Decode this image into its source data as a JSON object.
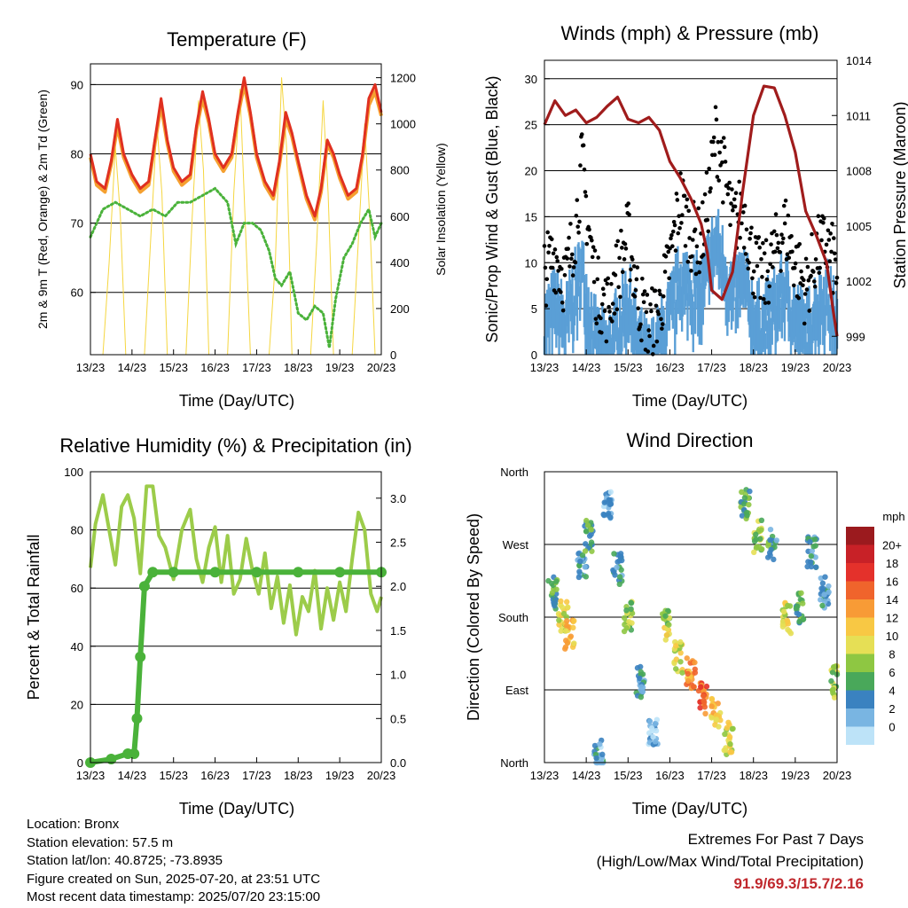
{
  "info": {
    "location": "Location: Bronx",
    "elevation": "Station elevation: 57.5 m",
    "latlon": "Station lat/lon: 40.8725; -73.8935",
    "created": "Figure created on Sun, 2025-07-20, at 23:51 UTC",
    "latest": "Most recent data timestamp: 2025/07/20 23:15:00"
  },
  "extremes": {
    "title": "Extremes For Past 7 Days",
    "subtitle": "(High/Low/Max Wind/Total Precipitation)",
    "values": "91.9/69.3/15.7/2.16",
    "color": "#c0282d"
  },
  "colorbar": {
    "unit": "mph",
    "labels": [
      "20+",
      "18",
      "16",
      "14",
      "12",
      "10",
      "8",
      "6",
      "4",
      "2",
      "0"
    ],
    "colors": [
      "#9b1a1e",
      "#c82127",
      "#e4312b",
      "#f0642c",
      "#f89b36",
      "#f8c844",
      "#e6df55",
      "#8ec742",
      "#49a85a",
      "#3a82c0",
      "#79b5e2",
      "#bde3f8"
    ]
  },
  "chart_data": [
    {
      "type": "line",
      "title": "Temperature (F)",
      "xlabel": "Time (Day/UTC)",
      "ylabel": "2m & 9m T (Red, Orange) & 2m Td (Green)",
      "y2label": "Solar Insolation (Yellow)",
      "x_ticks": [
        "13/23",
        "14/23",
        "15/23",
        "16/23",
        "17/23",
        "18/23",
        "19/23",
        "20/23"
      ],
      "ylim": [
        51,
        93
      ],
      "y_ticks": [
        60,
        70,
        80,
        90
      ],
      "y2lim": [
        0,
        1260
      ],
      "y2_ticks": [
        0,
        200,
        400,
        600,
        800,
        1000,
        1200
      ],
      "grid": true,
      "series": [
        {
          "name": "2m T",
          "axis": "left",
          "color": "#e03020",
          "x": [
            0,
            0.15,
            0.35,
            0.5,
            0.65,
            0.8,
            1,
            1.2,
            1.4,
            1.55,
            1.7,
            1.85,
            2,
            2.2,
            2.4,
            2.55,
            2.7,
            2.85,
            3,
            3.2,
            3.4,
            3.55,
            3.7,
            3.85,
            4,
            4.2,
            4.4,
            4.55,
            4.7,
            4.85,
            5,
            5.2,
            5.4,
            5.55,
            5.7,
            5.85,
            6,
            6.2,
            6.4,
            6.55,
            6.7,
            6.85,
            7
          ],
          "y": [
            80,
            76,
            75,
            79,
            85,
            80,
            77,
            75,
            76,
            82,
            88,
            82,
            78,
            76,
            77,
            84,
            89,
            85,
            80,
            78,
            80,
            86,
            91,
            86,
            80,
            76,
            74,
            79,
            86,
            83,
            79,
            74,
            71,
            75,
            82,
            80,
            77,
            74,
            75,
            80,
            88,
            90,
            86
          ]
        },
        {
          "name": "9m T",
          "axis": "left",
          "color": "#f5a030",
          "x": [
            0,
            0.15,
            0.35,
            0.5,
            0.65,
            0.8,
            1,
            1.2,
            1.4,
            1.55,
            1.7,
            1.85,
            2,
            2.2,
            2.4,
            2.55,
            2.7,
            2.85,
            3,
            3.2,
            3.4,
            3.55,
            3.7,
            3.85,
            4,
            4.2,
            4.4,
            4.55,
            4.7,
            4.85,
            5,
            5.2,
            5.4,
            5.55,
            5.7,
            5.85,
            6,
            6.2,
            6.4,
            6.55,
            6.7,
            6.85,
            7
          ],
          "y": [
            79.5,
            75.5,
            74.5,
            78.5,
            84,
            79.5,
            76.5,
            74.5,
            75.5,
            81.5,
            87,
            81.5,
            77.5,
            75.5,
            76.5,
            83.5,
            88,
            84.5,
            79.5,
            77.5,
            79.5,
            85.5,
            90,
            85.5,
            79.5,
            75.5,
            73.5,
            78.5,
            85,
            82.5,
            78.5,
            73.5,
            70.5,
            74.5,
            81.5,
            79.5,
            76.5,
            73.5,
            74.5,
            79.5,
            87,
            89,
            85.5
          ]
        },
        {
          "name": "2m Td",
          "axis": "left",
          "color": "#4ab23a",
          "x": [
            0,
            0.3,
            0.6,
            0.9,
            1.2,
            1.5,
            1.8,
            2.1,
            2.4,
            2.7,
            3,
            3.3,
            3.5,
            3.7,
            3.9,
            4.1,
            4.3,
            4.45,
            4.6,
            4.8,
            5,
            5.2,
            5.4,
            5.6,
            5.75,
            5.9,
            6.1,
            6.3,
            6.5,
            6.7,
            6.85,
            7
          ],
          "y": [
            68,
            72,
            73,
            72,
            71,
            72,
            71,
            73,
            73,
            74,
            75,
            73,
            67,
            70,
            70,
            69,
            66,
            62,
            61,
            63,
            57,
            56,
            58,
            57,
            52,
            59,
            65,
            67,
            70,
            72,
            68,
            70
          ]
        },
        {
          "name": "Solar Insolation",
          "axis": "right",
          "color": "#f5d640",
          "x": [
            0,
            0.3,
            0.45,
            0.6,
            0.72,
            0.85,
            1.1,
            1.3,
            1.45,
            1.6,
            1.72,
            1.85,
            2.1,
            2.3,
            2.45,
            2.6,
            2.72,
            2.85,
            3.1,
            3.3,
            3.45,
            3.6,
            3.72,
            3.85,
            4.1,
            4.3,
            4.45,
            4.6,
            4.72,
            4.85,
            5.1,
            5.3,
            5.45,
            5.6,
            5.72,
            5.85,
            6.1,
            6.3,
            6.45,
            6.6,
            6.72,
            6.85,
            7
          ],
          "y": [
            0,
            0,
            400,
            900,
            600,
            0,
            0,
            0,
            500,
            1000,
            700,
            0,
            0,
            0,
            600,
            1100,
            800,
            0,
            0,
            0,
            700,
            1150,
            600,
            0,
            0,
            0,
            400,
            1200,
            900,
            0,
            0,
            0,
            500,
            1100,
            700,
            0,
            0,
            0,
            500,
            1000,
            600,
            0,
            0
          ]
        }
      ]
    },
    {
      "type": "scatter",
      "title": "Winds (mph) & Pressure (mb)",
      "xlabel": "Time (Day/UTC)",
      "ylabel": "Sonic/Prop Wind & Gust (Blue, Black)",
      "y2label": "Station Pressure (Maroon)",
      "x_ticks": [
        "13/23",
        "14/23",
        "15/23",
        "16/23",
        "17/23",
        "18/23",
        "19/23",
        "20/23"
      ],
      "ylim": [
        0,
        32
      ],
      "y_ticks": [
        0,
        5,
        10,
        15,
        20,
        25,
        30
      ],
      "y2lim": [
        998,
        1014
      ],
      "y2_ticks": [
        999,
        1002,
        1005,
        1008,
        1011,
        1014
      ],
      "grid": true,
      "series": [
        {
          "name": "Gust",
          "axis": "left",
          "color": "#000000",
          "x": [
            0,
            0.25,
            0.5,
            0.75,
            0.9,
            1.0,
            1.25,
            1.5,
            1.75,
            2.0,
            2.25,
            2.5,
            2.75,
            3.0,
            3.25,
            3.5,
            3.75,
            3.95,
            4.1,
            4.25,
            4.5,
            4.75,
            5.0,
            5.25,
            5.5,
            5.75,
            6.0,
            6.25,
            6.5,
            6.75,
            7.0
          ],
          "y": [
            9,
            11,
            8,
            14,
            21,
            16,
            7,
            5,
            9,
            13,
            6,
            3,
            5,
            10,
            17,
            13,
            12,
            18,
            24,
            21,
            14,
            16,
            10,
            8,
            11,
            14,
            10,
            7,
            11,
            12,
            9
          ]
        },
        {
          "name": "Wind",
          "axis": "left",
          "color": "#5a9fd6",
          "x": [
            0,
            0.25,
            0.5,
            0.75,
            0.9,
            1.0,
            1.25,
            1.5,
            1.75,
            2.0,
            2.25,
            2.5,
            2.75,
            3.0,
            3.25,
            3.5,
            3.75,
            3.95,
            4.1,
            4.25,
            4.5,
            4.75,
            5.0,
            5.25,
            5.5,
            5.75,
            6.0,
            6.25,
            6.5,
            6.75,
            7.0
          ],
          "y": [
            5,
            7,
            5,
            9,
            11,
            8,
            3,
            2,
            5,
            8,
            3,
            1,
            3,
            6,
            10,
            9,
            8,
            12,
            14,
            12,
            8,
            10,
            6,
            5,
            7,
            9,
            6,
            4,
            7,
            8,
            5
          ]
        },
        {
          "name": "Pressure",
          "axis": "right",
          "color": "#a01c1c",
          "x": [
            0,
            0.25,
            0.5,
            0.75,
            1.0,
            1.25,
            1.5,
            1.75,
            2.0,
            2.25,
            2.5,
            2.75,
            3.0,
            3.25,
            3.5,
            3.75,
            3.9,
            4.0,
            4.25,
            4.5,
            4.75,
            5.0,
            5.25,
            5.5,
            5.75,
            6.0,
            6.25,
            6.5,
            6.75,
            6.9,
            7.0
          ],
          "y": [
            1010.5,
            1011.8,
            1011.0,
            1011.3,
            1010.6,
            1010.9,
            1011.5,
            1012.0,
            1010.8,
            1010.6,
            1010.9,
            1010.2,
            1008.5,
            1007.6,
            1006.5,
            1005.1,
            1003.5,
            1001.5,
            1001.0,
            1002.5,
            1007.0,
            1011.0,
            1012.6,
            1012.5,
            1011.0,
            1009.0,
            1005.8,
            1004.5,
            1003.0,
            1000.5,
            999.0
          ]
        }
      ]
    },
    {
      "type": "line",
      "title": "Relative Humidity (%) & Precipitation (in)",
      "xlabel": "Time (Day/UTC)",
      "ylabel": "Percent & Total Rainfall",
      "x_ticks": [
        "13/23",
        "14/23",
        "15/23",
        "16/23",
        "17/23",
        "18/23",
        "19/23",
        "20/23"
      ],
      "ylim": [
        0,
        100
      ],
      "y_ticks": [
        0,
        20,
        40,
        60,
        80,
        100
      ],
      "y2lim": [
        0,
        3.3
      ],
      "y2_ticks": [
        "0.0",
        "0.5",
        "1.0",
        "1.5",
        "2.0",
        "2.5",
        "3.0"
      ],
      "grid": true,
      "series": [
        {
          "name": "Relative Humidity",
          "axis": "left",
          "color": "#9ccc4a",
          "x": [
            0,
            0.12,
            0.3,
            0.45,
            0.6,
            0.75,
            0.9,
            1.05,
            1.2,
            1.35,
            1.5,
            1.65,
            1.8,
            2.0,
            2.2,
            2.4,
            2.55,
            2.7,
            2.85,
            3.0,
            3.15,
            3.3,
            3.45,
            3.6,
            3.75,
            3.9,
            4.05,
            4.2,
            4.35,
            4.5,
            4.65,
            4.8,
            4.95,
            5.1,
            5.25,
            5.4,
            5.55,
            5.7,
            5.85,
            6.0,
            6.15,
            6.3,
            6.45,
            6.6,
            6.75,
            6.9,
            7.0
          ],
          "y": [
            67,
            82,
            92,
            80,
            68,
            88,
            92,
            84,
            65,
            95,
            95,
            78,
            74,
            63,
            80,
            87,
            70,
            62,
            74,
            81,
            62,
            78,
            58,
            63,
            77,
            66,
            58,
            72,
            53,
            64,
            48,
            61,
            44,
            57,
            52,
            66,
            46,
            60,
            49,
            62,
            52,
            70,
            86,
            80,
            58,
            52,
            57
          ]
        },
        {
          "name": "Total Rainfall",
          "axis": "right",
          "color": "#4ab23a",
          "x": [
            0,
            0.5,
            0.9,
            1.05,
            1.12,
            1.2,
            1.3,
            1.5,
            2,
            3,
            4,
            5,
            6,
            7
          ],
          "y": [
            0.0,
            0.04,
            0.1,
            0.1,
            0.5,
            1.2,
            2.0,
            2.16,
            2.16,
            2.16,
            2.16,
            2.16,
            2.16,
            2.16
          ]
        }
      ]
    },
    {
      "type": "scatter",
      "title": "Wind Direction",
      "xlabel": "Time (Day/UTC)",
      "ylabel": "Direction (Colored By Speed)",
      "x_ticks": [
        "13/23",
        "14/23",
        "15/23",
        "16/23",
        "17/23",
        "18/23",
        "19/23",
        "20/23"
      ],
      "y_ticks": [
        "North",
        "East",
        "South",
        "West",
        "North"
      ],
      "ylim": [
        0,
        360
      ],
      "grid": true,
      "legend": "right",
      "clusters": [
        {
          "x": 0.2,
          "dir": 150,
          "speed": 6
        },
        {
          "x": 0.45,
          "dir": 180,
          "speed": 10
        },
        {
          "x": 0.6,
          "dir": 200,
          "speed": 12
        },
        {
          "x": 0.9,
          "dir": 120,
          "speed": 4
        },
        {
          "x": 1.05,
          "dir": 80,
          "speed": 6
        },
        {
          "x": 1.3,
          "dir": 350,
          "speed": 3
        },
        {
          "x": 1.5,
          "dir": 40,
          "speed": 3
        },
        {
          "x": 1.75,
          "dir": 120,
          "speed": 4
        },
        {
          "x": 2.0,
          "dir": 180,
          "speed": 8
        },
        {
          "x": 2.3,
          "dir": 260,
          "speed": 4
        },
        {
          "x": 2.6,
          "dir": 320,
          "speed": 2
        },
        {
          "x": 2.9,
          "dir": 190,
          "speed": 9
        },
        {
          "x": 3.2,
          "dir": 230,
          "speed": 10
        },
        {
          "x": 3.5,
          "dir": 250,
          "speed": 14
        },
        {
          "x": 3.8,
          "dir": 280,
          "speed": 16
        },
        {
          "x": 4.1,
          "dir": 300,
          "speed": 12
        },
        {
          "x": 4.4,
          "dir": 330,
          "speed": 10
        },
        {
          "x": 4.8,
          "dir": 40,
          "speed": 6
        },
        {
          "x": 5.1,
          "dir": 80,
          "speed": 8
        },
        {
          "x": 5.45,
          "dir": 90,
          "speed": 5
        },
        {
          "x": 5.8,
          "dir": 180,
          "speed": 10
        },
        {
          "x": 6.1,
          "dir": 170,
          "speed": 6
        },
        {
          "x": 6.4,
          "dir": 100,
          "speed": 4
        },
        {
          "x": 6.7,
          "dir": 150,
          "speed": 4
        },
        {
          "x": 6.95,
          "dir": 260,
          "speed": 8
        }
      ]
    }
  ]
}
